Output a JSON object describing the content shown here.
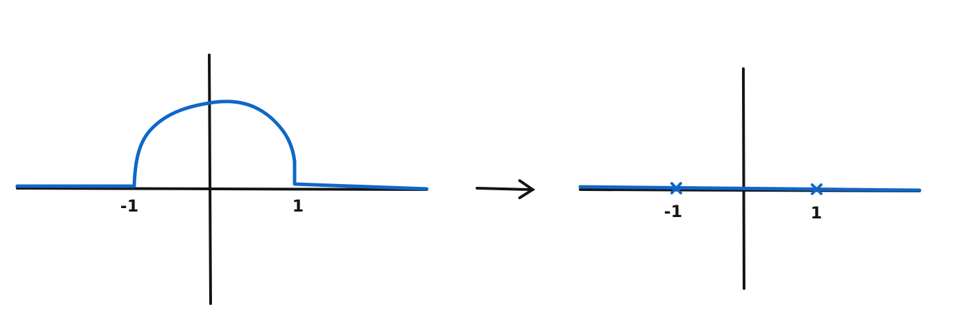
{
  "colors": {
    "hatch": "#bfeeff",
    "curve": "#0f67c9",
    "axis": "#141414",
    "background": "#ffffff"
  },
  "left_diagram": {
    "tick_labels": {
      "minus_one": "-1",
      "one": "1"
    }
  },
  "arrow": {
    "symbol": "→"
  },
  "right_diagram": {
    "tick_labels": {
      "minus_one": "-1",
      "one": "1"
    },
    "marks": [
      "×",
      "×"
    ]
  }
}
